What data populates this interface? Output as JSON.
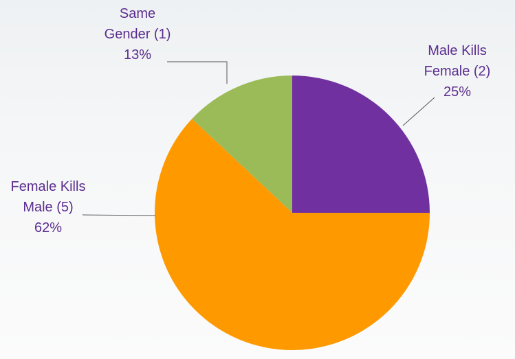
{
  "chart_data": {
    "type": "pie",
    "categories": [
      "Male Kills Female (2)",
      "Female Kills Male (5)",
      "Same Gender (1)"
    ],
    "values": [
      25,
      62,
      13
    ],
    "value_labels": [
      "25%",
      "62%",
      "13%"
    ],
    "colors": [
      "#7030a0",
      "#ff9900",
      "#9bbb59"
    ]
  }
}
